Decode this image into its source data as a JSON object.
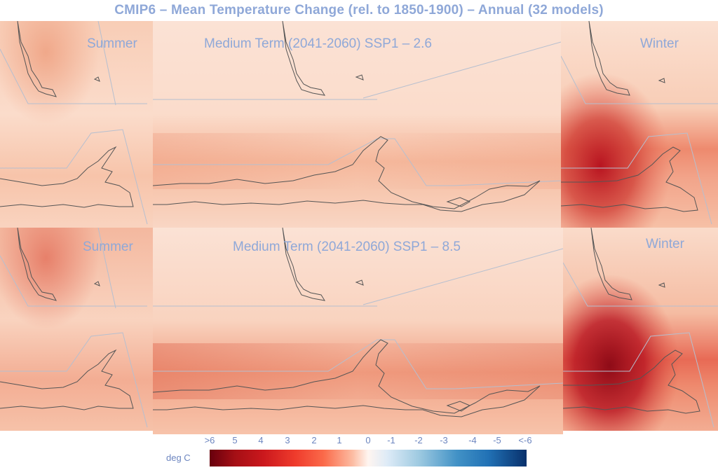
{
  "title": "CMIP6 – Mean Temperature Change (rel. to 1850-1900) – Annual (32 models)",
  "rows": [
    {
      "scenario_label": "Medium Term (2041-2060) SSP1 – 2.6",
      "left_label": "Summer",
      "right_label": "Winter"
    },
    {
      "scenario_label": "Medium Term (2041-2060) SSP1 – 8.5",
      "left_label": "Summer",
      "right_label": "Winter"
    }
  ],
  "colorbar": {
    "unit": "deg C",
    "ticks": [
      ">6",
      "5",
      "4",
      "3",
      "2",
      "1",
      "0",
      "-1",
      "-2",
      "-3",
      "-4",
      "-5",
      "<-6"
    ],
    "colors": {
      "warm_max": "#67000d",
      "neutral": "#fff5f0",
      "cool_max": "#08306b"
    }
  }
}
